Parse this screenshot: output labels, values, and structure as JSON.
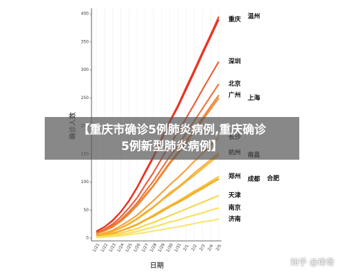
{
  "chart_data": {
    "type": "line",
    "x_label": "日期",
    "y_label": "确诊人数",
    "categories": [
      "1/21",
      "1/22",
      "1/23",
      "1/24",
      "1/25",
      "1/26",
      "1/27",
      "1/28",
      "1/29",
      "1/30",
      "1/31",
      "2/1",
      "2/2",
      "2/3",
      "2/4",
      "2/5"
    ],
    "ylim": [
      0,
      410
    ],
    "yticks": [
      0,
      50,
      100,
      150,
      200,
      250,
      300,
      350,
      400
    ],
    "grid": true,
    "series": [
      {
        "name": "重庆",
        "color": "#e3231b",
        "values": [
          12,
          20,
          31,
          47,
          66,
          90,
          117,
          144,
          176,
          207,
          234,
          265,
          296,
          328,
          359,
          390
        ]
      },
      {
        "name": "温州",
        "color": "#e8321c",
        "values": [
          12,
          20,
          32,
          47,
          67,
          91,
          119,
          146,
          178,
          209,
          237,
          269,
          300,
          332,
          363,
          395
        ]
      },
      {
        "name": "深圳",
        "color": "#e9502a",
        "values": [
          9,
          16,
          25,
          38,
          54,
          72,
          95,
          117,
          142,
          167,
          189,
          214,
          239,
          265,
          290,
          315
        ]
      },
      {
        "name": "北京",
        "color": "#ec6a2c",
        "values": [
          8,
          14,
          22,
          33,
          47,
          63,
          83,
          102,
          124,
          146,
          165,
          187,
          209,
          231,
          253,
          275
        ]
      },
      {
        "name": "广州",
        "color": "#ee7a2a",
        "values": [
          8,
          13,
          20,
          31,
          43,
          59,
          77,
          94,
          115,
          135,
          153,
          173,
          194,
          214,
          235,
          255
        ]
      },
      {
        "name": "上海",
        "color": "#ef852a",
        "values": [
          8,
          13,
          20,
          30,
          43,
          58,
          75,
          93,
          113,
          133,
          150,
          170,
          190,
          210,
          230,
          250
        ]
      },
      {
        "name": "长沙",
        "color": "#f19a2a",
        "values": [
          5,
          9,
          14,
          22,
          31,
          41,
          54,
          67,
          81,
          95,
          108,
          122,
          137,
          151,
          166,
          180
        ]
      },
      {
        "name": "杭州",
        "color": "#f3a92a",
        "values": [
          5,
          8,
          12,
          18,
          26,
          35,
          46,
          56,
          68,
          81,
          91,
          103,
          116,
          128,
          140,
          152
        ]
      },
      {
        "name": "南昌",
        "color": "#f3b02b",
        "values": [
          4,
          7,
          12,
          18,
          25,
          34,
          44,
          55,
          67,
          78,
          89,
          101,
          112,
          124,
          136,
          148
        ]
      },
      {
        "name": "郑州",
        "color": "#f5bf2c",
        "values": [
          3,
          6,
          9,
          13,
          19,
          25,
          33,
          41,
          50,
          58,
          66,
          75,
          84,
          92,
          101,
          110
        ]
      },
      {
        "name": "成都",
        "color": "#f6c930",
        "values": [
          3,
          5,
          8,
          13,
          18,
          24,
          32,
          39,
          47,
          56,
          63,
          71,
          80,
          88,
          97,
          105
        ]
      },
      {
        "name": "合肥",
        "color": "#f4a52a",
        "values": [
          3,
          5,
          8,
          13,
          18,
          24,
          32,
          39,
          48,
          56,
          64,
          72,
          81,
          89,
          98,
          106
        ]
      },
      {
        "name": "天津",
        "color": "#f7d43a",
        "values": [
          2,
          4,
          6,
          9,
          13,
          17,
          23,
          28,
          34,
          40,
          46,
          52,
          58,
          64,
          70,
          76
        ]
      },
      {
        "name": "南京",
        "color": "#f8dd50",
        "values": [
          2,
          3,
          4,
          6,
          9,
          12,
          16,
          20,
          24,
          29,
          32,
          37,
          41,
          45,
          50,
          54
        ]
      },
      {
        "name": "济南",
        "color": "#f9e46a",
        "values": [
          1,
          2,
          3,
          4,
          6,
          8,
          10,
          13,
          15,
          18,
          20,
          23,
          26,
          29,
          31,
          34
        ]
      }
    ]
  },
  "banner": [
    "【重庆市确诊5例肺炎病例,重庆确诊",
    "5例新型肺炎病例】"
  ],
  "watermark": "知乎 @徘骨"
}
